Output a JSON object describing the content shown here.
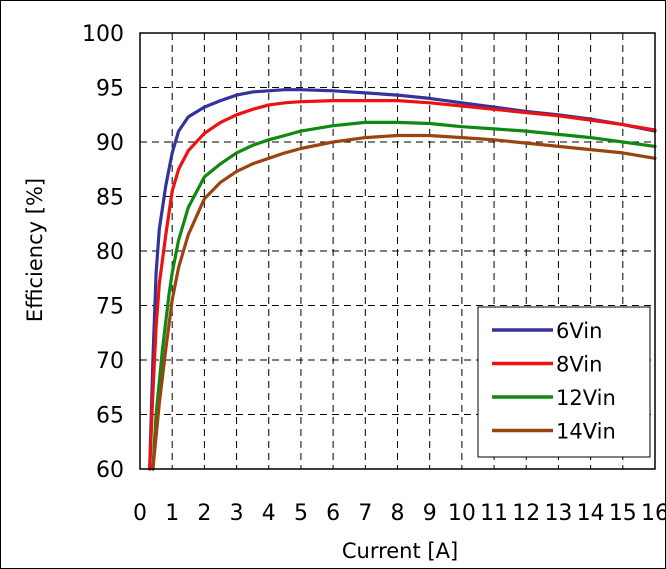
{
  "chart_data": {
    "type": "line",
    "title": "",
    "xlabel": "Current [A]",
    "ylabel": "Efficiency [%]",
    "xlim": [
      0,
      16
    ],
    "ylim": [
      60,
      100
    ],
    "x_ticks": [
      "0",
      "1",
      "2",
      "3",
      "4",
      "5",
      "6",
      "7",
      "8",
      "9",
      "10",
      "11",
      "12",
      "13",
      "14",
      "15",
      "16"
    ],
    "y_ticks": [
      "60",
      "65",
      "70",
      "75",
      "80",
      "85",
      "90",
      "95",
      "100"
    ],
    "grid": true,
    "legend_position": "bottom-right",
    "series": [
      {
        "name": "6Vin",
        "color": "#333399",
        "points": [
          [
            0.3,
            60
          ],
          [
            0.4,
            70
          ],
          [
            0.5,
            78
          ],
          [
            0.6,
            82
          ],
          [
            0.8,
            86
          ],
          [
            1,
            89
          ],
          [
            1.2,
            91
          ],
          [
            1.5,
            92.3
          ],
          [
            2,
            93.2
          ],
          [
            2.5,
            93.8
          ],
          [
            3,
            94.3
          ],
          [
            3.5,
            94.6
          ],
          [
            4,
            94.7
          ],
          [
            4.5,
            94.8
          ],
          [
            5,
            94.8
          ],
          [
            6,
            94.7
          ],
          [
            7,
            94.5
          ],
          [
            8,
            94.3
          ],
          [
            9,
            94
          ],
          [
            10,
            93.6
          ],
          [
            11,
            93.2
          ],
          [
            12,
            92.8
          ],
          [
            13,
            92.5
          ],
          [
            14,
            92.1
          ],
          [
            15,
            91.6
          ],
          [
            16,
            91
          ]
        ]
      },
      {
        "name": "8Vin",
        "color": "#ee1111",
        "points": [
          [
            0.3,
            60
          ],
          [
            0.4,
            67
          ],
          [
            0.5,
            73
          ],
          [
            0.6,
            77
          ],
          [
            0.8,
            81.5
          ],
          [
            1,
            85.5
          ],
          [
            1.2,
            87.5
          ],
          [
            1.5,
            89.2
          ],
          [
            2,
            90.8
          ],
          [
            2.5,
            91.8
          ],
          [
            3,
            92.5
          ],
          [
            3.5,
            93
          ],
          [
            4,
            93.4
          ],
          [
            4.5,
            93.6
          ],
          [
            5,
            93.7
          ],
          [
            6,
            93.8
          ],
          [
            7,
            93.8
          ],
          [
            8,
            93.8
          ],
          [
            9,
            93.6
          ],
          [
            10,
            93.3
          ],
          [
            11,
            93
          ],
          [
            12,
            92.7
          ],
          [
            13,
            92.4
          ],
          [
            14,
            92
          ],
          [
            15,
            91.6
          ],
          [
            16,
            91.1
          ]
        ]
      },
      {
        "name": "12Vin",
        "color": "#118811",
        "points": [
          [
            0.4,
            60
          ],
          [
            0.5,
            65
          ],
          [
            0.7,
            71
          ],
          [
            0.9,
            76
          ],
          [
            1,
            78
          ],
          [
            1.2,
            81
          ],
          [
            1.5,
            84
          ],
          [
            2,
            86.8
          ],
          [
            2.5,
            88
          ],
          [
            3,
            89
          ],
          [
            3.5,
            89.7
          ],
          [
            4,
            90.2
          ],
          [
            4.5,
            90.6
          ],
          [
            5,
            91
          ],
          [
            6,
            91.5
          ],
          [
            7,
            91.8
          ],
          [
            8,
            91.8
          ],
          [
            9,
            91.7
          ],
          [
            10,
            91.4
          ],
          [
            11,
            91.2
          ],
          [
            12,
            91
          ],
          [
            13,
            90.7
          ],
          [
            14,
            90.4
          ],
          [
            15,
            90
          ],
          [
            16,
            89.6
          ]
        ]
      },
      {
        "name": "14Vin",
        "color": "#994411",
        "points": [
          [
            0.4,
            60
          ],
          [
            0.6,
            66
          ],
          [
            0.8,
            71
          ],
          [
            1,
            75.5
          ],
          [
            1.2,
            78.5
          ],
          [
            1.5,
            81.5
          ],
          [
            2,
            84.8
          ],
          [
            2.5,
            86.3
          ],
          [
            3,
            87.3
          ],
          [
            3.5,
            88
          ],
          [
            4,
            88.5
          ],
          [
            4.5,
            89
          ],
          [
            5,
            89.4
          ],
          [
            6,
            90
          ],
          [
            7,
            90.4
          ],
          [
            8,
            90.6
          ],
          [
            9,
            90.6
          ],
          [
            10,
            90.4
          ],
          [
            11,
            90.2
          ],
          [
            12,
            89.9
          ],
          [
            13,
            89.6
          ],
          [
            14,
            89.3
          ],
          [
            15,
            89
          ],
          [
            16,
            88.5
          ]
        ]
      }
    ]
  }
}
